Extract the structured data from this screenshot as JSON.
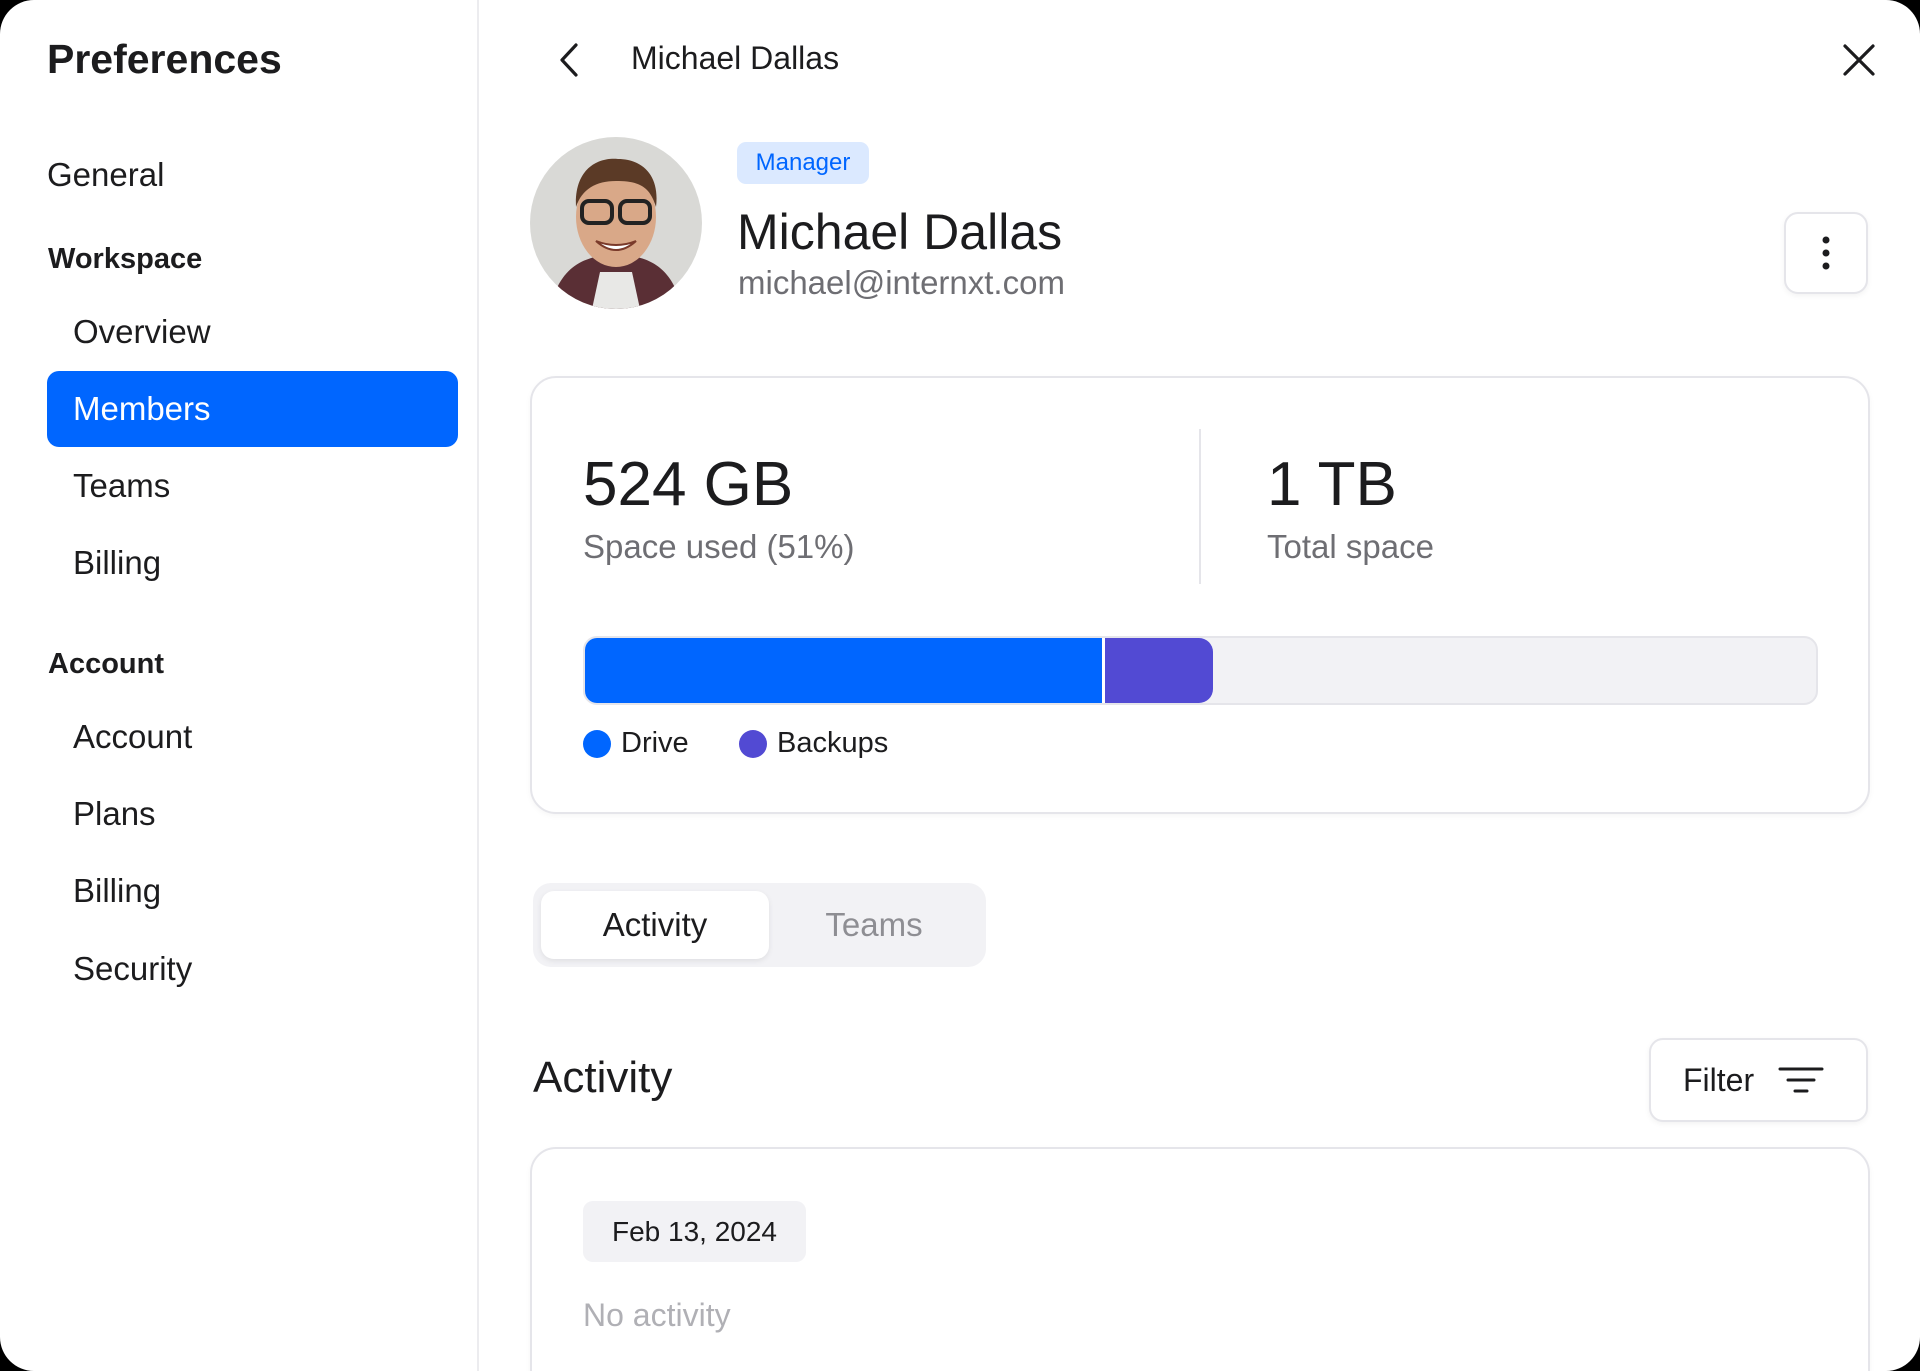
{
  "sidebar": {
    "title": "Preferences",
    "general": "General",
    "workspace_header": "Workspace",
    "workspace_items": [
      "Overview",
      "Members",
      "Teams",
      "Billing"
    ],
    "account_header": "Account",
    "account_items": [
      "Account",
      "Plans",
      "Billing",
      "Security"
    ],
    "active_item": "Members"
  },
  "header": {
    "title": "Michael Dallas",
    "back_icon": "chevron-left-icon",
    "close_icon": "close-icon"
  },
  "profile": {
    "role_badge": "Manager",
    "name": "Michael Dallas",
    "email": "michael@internxt.com",
    "more_icon": "more-vertical-icon"
  },
  "storage": {
    "used_value": "524 GB",
    "used_label": "Space used (51%)",
    "total_value": "1 TB",
    "total_label": "Total space",
    "segments": [
      {
        "name": "Drive",
        "fraction": 0.42,
        "color": "#0066ff"
      },
      {
        "name": "Backups",
        "fraction": 0.09,
        "color": "#524ad3"
      }
    ]
  },
  "tabs": [
    "Activity",
    "Teams"
  ],
  "active_tab": "Activity",
  "activity": {
    "heading": "Activity",
    "filter_label": "Filter",
    "filter_icon": "filter-lines-icon",
    "date": "Feb 13, 2024",
    "empty_text": "No activity"
  },
  "colors": {
    "accent": "#0066ff",
    "backups": "#524ad3",
    "badge_bg": "#dbe9ff"
  }
}
